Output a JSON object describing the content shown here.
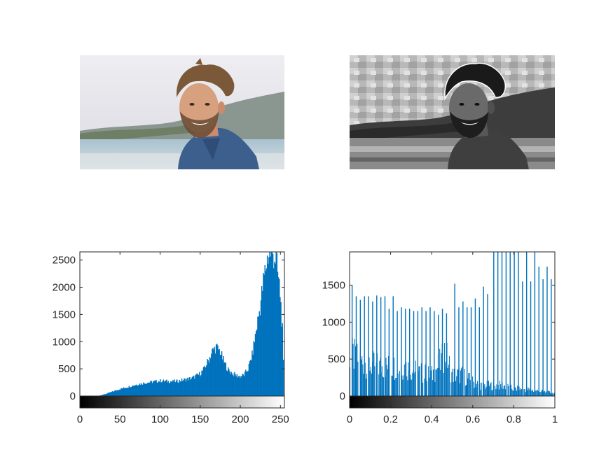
{
  "figure": {
    "photo_original": {
      "description_icon": "portrait-photo-icon"
    },
    "photo_equalized": {
      "description_icon": "portrait-photo-icon"
    }
  },
  "colors": {
    "bar": "#0072BD",
    "axis": "#262626",
    "sky": "#e9e8ee",
    "shirt": "#3a5f8f",
    "hair": "#6b4a30",
    "skin": "#d7a07e"
  },
  "chart_data": [
    {
      "type": "bar",
      "subtype": "histogram",
      "x": {
        "ticks": [
          0,
          50,
          100,
          150,
          200,
          250
        ],
        "tick_labels": [
          "0",
          "50",
          "100",
          "150",
          "200",
          "250"
        ],
        "range": [
          0,
          255
        ],
        "colorbar": "gray"
      },
      "y": {
        "ticks": [
          0,
          500,
          1000,
          1500,
          2000,
          2500
        ],
        "tick_labels": [
          "0",
          "500",
          "1000",
          "1500",
          "2000",
          "2500"
        ],
        "range": [
          0,
          2650
        ]
      },
      "profile": {
        "x": [
          0,
          20,
          25,
          30,
          40,
          50,
          60,
          70,
          80,
          90,
          100,
          110,
          120,
          130,
          140,
          150,
          155,
          160,
          165,
          170,
          175,
          180,
          185,
          190,
          195,
          200,
          205,
          210,
          215,
          220,
          225,
          230,
          235,
          240,
          245,
          250,
          253,
          255
        ],
        "values": [
          0,
          0,
          10,
          30,
          80,
          130,
          170,
          210,
          240,
          260,
          280,
          270,
          270,
          300,
          330,
          410,
          500,
          650,
          820,
          900,
          820,
          620,
          480,
          420,
          380,
          360,
          390,
          500,
          750,
          1200,
          1650,
          2200,
          2600,
          2650,
          2500,
          1900,
          1200,
          0
        ]
      },
      "grid": false
    },
    {
      "type": "bar",
      "subtype": "histogram",
      "x": {
        "ticks": [
          0,
          0.2,
          0.4,
          0.6,
          0.8,
          1
        ],
        "tick_labels": [
          "0",
          "0.2",
          "0.4",
          "0.6",
          "0.8",
          "1"
        ],
        "range": [
          0,
          1
        ],
        "colorbar": "gray"
      },
      "y": {
        "ticks": [
          0,
          500,
          1000,
          1500
        ],
        "tick_labels": [
          "0",
          "500",
          "1000",
          "1500"
        ],
        "range": [
          0,
          1950
        ]
      },
      "base_profile": {
        "x": [
          0,
          0.05,
          0.1,
          0.15,
          0.2,
          0.25,
          0.3,
          0.35,
          0.4,
          0.45,
          0.46,
          0.48,
          0.5,
          0.55,
          0.6,
          0.65,
          0.7,
          0.75,
          0.8,
          0.85,
          0.9,
          0.95,
          1
        ],
        "values": [
          600,
          500,
          450,
          420,
          420,
          430,
          380,
          330,
          300,
          500,
          640,
          500,
          300,
          300,
          200,
          150,
          150,
          150,
          100,
          100,
          80,
          60,
          40
        ]
      },
      "spikes": {
        "x": [
          0.01,
          0.03,
          0.05,
          0.07,
          0.09,
          0.11,
          0.13,
          0.15,
          0.17,
          0.19,
          0.21,
          0.23,
          0.25,
          0.27,
          0.29,
          0.31,
          0.33,
          0.35,
          0.37,
          0.39,
          0.41,
          0.43,
          0.45,
          0.47,
          0.51,
          0.53,
          0.55,
          0.57,
          0.59,
          0.61,
          0.63,
          0.65,
          0.67,
          0.7,
          0.72,
          0.74,
          0.76,
          0.78,
          0.8,
          0.82,
          0.84,
          0.86,
          0.88,
          0.9,
          0.92,
          0.94,
          0.96,
          0.98
        ],
        "values": [
          1500,
          1350,
          1300,
          1350,
          1350,
          1280,
          1360,
          1340,
          1350,
          1180,
          1350,
          1150,
          1200,
          1180,
          1180,
          1150,
          1150,
          1200,
          1150,
          1200,
          1150,
          1100,
          1180,
          1120,
          1520,
          1200,
          1280,
          1200,
          1200,
          1320,
          1200,
          1480,
          1380,
          1950,
          1950,
          1950,
          1950,
          1950,
          1950,
          1950,
          1550,
          1950,
          1550,
          1950,
          1750,
          1580,
          1750,
          1580
        ]
      },
      "grid": false
    }
  ]
}
